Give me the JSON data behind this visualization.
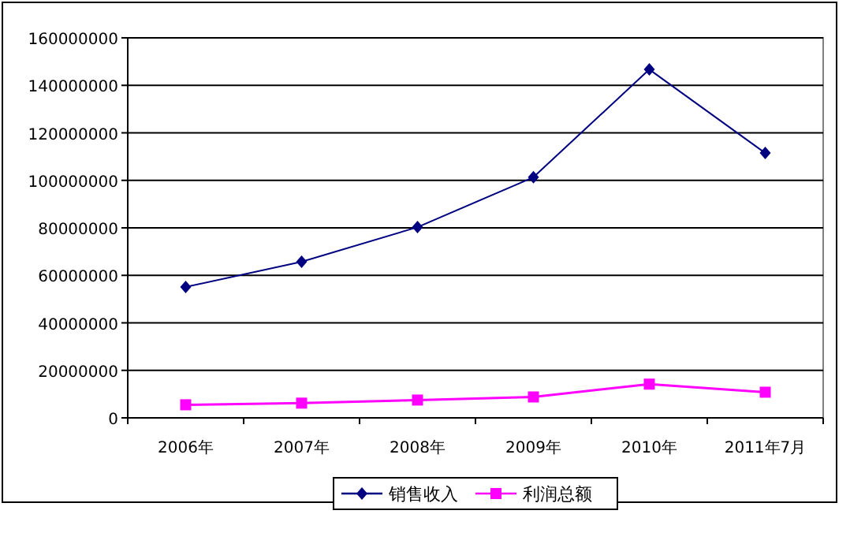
{
  "chart_data": {
    "type": "line",
    "categories": [
      "2006年",
      "2007年",
      "2008年",
      "2009年",
      "2010年",
      "2011年7月"
    ],
    "series": [
      {
        "name": "销售收入",
        "color": "#000080",
        "marker": "diamond",
        "values": [
          55100000,
          65700000,
          80300000,
          101300000,
          146700000,
          111500000
        ]
      },
      {
        "name": "利润总额",
        "color": "#ff00ff",
        "marker": "square",
        "values": [
          5500000,
          6200000,
          7500000,
          8800000,
          14200000,
          10800000
        ]
      }
    ],
    "ylim": [
      0,
      160000000
    ],
    "yticks": [
      0,
      20000000,
      40000000,
      60000000,
      80000000,
      100000000,
      120000000,
      140000000,
      160000000
    ],
    "grid": "y",
    "legend": "bottom",
    "line_style": "solid"
  }
}
